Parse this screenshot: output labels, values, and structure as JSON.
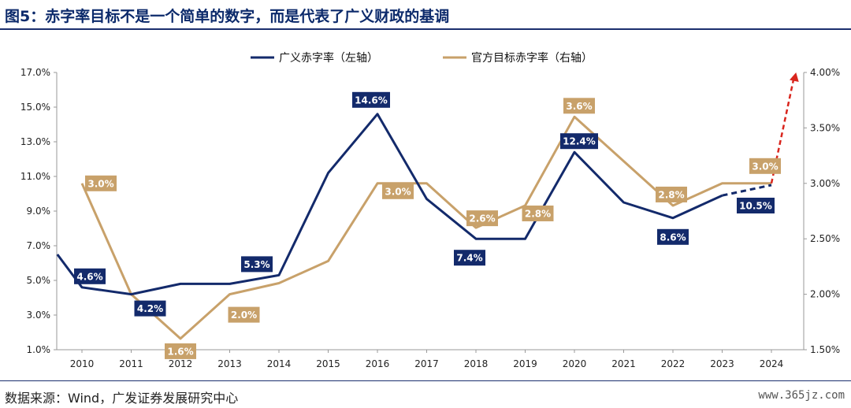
{
  "title": "图5：赤字率目标不是一个简单的数字，而是代表了广义财政的基调",
  "source": "数据来源：Wind，广发证券发展研究中心",
  "watermark": "www.365jz.com",
  "colors": {
    "navy": "#132a6b",
    "gold": "#c8a16a",
    "red": "#d9251d",
    "axis": "#888888"
  },
  "chart_data": {
    "type": "line",
    "categories": [
      "2010",
      "2011",
      "2012",
      "2013",
      "2014",
      "2015",
      "2016",
      "2017",
      "2018",
      "2019",
      "2020",
      "2021",
      "2022",
      "2023",
      "2024"
    ],
    "y_left": {
      "ylim": [
        1.0,
        17.0
      ],
      "ticks": [
        "1.0%",
        "3.0%",
        "5.0%",
        "7.0%",
        "9.0%",
        "11.0%",
        "13.0%",
        "15.0%",
        "17.0%"
      ]
    },
    "y_right": {
      "ylim": [
        1.5,
        4.0
      ],
      "ticks": [
        "1.50%",
        "2.00%",
        "2.50%",
        "3.00%",
        "3.50%",
        "4.00%"
      ]
    },
    "series": [
      {
        "name": "广义赤字率（左轴）",
        "axis": "left",
        "color": "#132a6b",
        "x": [
          2009.5,
          2010,
          2011,
          2012,
          2013,
          2014,
          2015,
          2016,
          2017,
          2018,
          2019,
          2020,
          2021,
          2022,
          2023,
          2024
        ],
        "values": [
          6.5,
          4.6,
          4.2,
          4.8,
          4.8,
          5.3,
          11.2,
          14.6,
          9.7,
          7.4,
          7.4,
          12.4,
          9.5,
          8.6,
          9.9,
          10.5
        ],
        "dashed_from": 2023,
        "labels": [
          {
            "x": 2010,
            "text": "4.6%"
          },
          {
            "x": 2011,
            "text": "4.2%"
          },
          {
            "x": 2014,
            "text": "5.3%"
          },
          {
            "x": 2016,
            "text": "14.6%"
          },
          {
            "x": 2018,
            "text": "7.4%"
          },
          {
            "x": 2020,
            "text": "12.4%"
          },
          {
            "x": 2022,
            "text": "8.6%"
          },
          {
            "x": 2024,
            "text": "10.5%"
          }
        ]
      },
      {
        "name": "官方目标赤字率（右轴）",
        "axis": "right",
        "color": "#c8a16a",
        "x": [
          2010,
          2011,
          2012,
          2013,
          2014,
          2015,
          2016,
          2017,
          2018,
          2019,
          2020,
          2021,
          2022,
          2023,
          2024
        ],
        "values": [
          3.0,
          2.0,
          1.6,
          2.0,
          2.1,
          2.3,
          3.0,
          3.0,
          2.6,
          2.8,
          3.6,
          3.2,
          2.8,
          3.0,
          3.0
        ],
        "labels": [
          {
            "x": 2010,
            "text": "3.0%"
          },
          {
            "x": 2012,
            "text": "1.6%"
          },
          {
            "x": 2013,
            "text": "2.0%"
          },
          {
            "x": 2016,
            "text": "3.0%"
          },
          {
            "x": 2018,
            "text": "2.6%"
          },
          {
            "x": 2019,
            "text": "2.8%"
          },
          {
            "x": 2020,
            "text": "3.6%"
          },
          {
            "x": 2022,
            "text": "2.8%"
          },
          {
            "x": 2024,
            "text": "3.0%"
          }
        ],
        "projection": {
          "color": "#d9251d",
          "x_to": 2024.5,
          "value_to": 4.0
        }
      }
    ],
    "legend": "top"
  }
}
